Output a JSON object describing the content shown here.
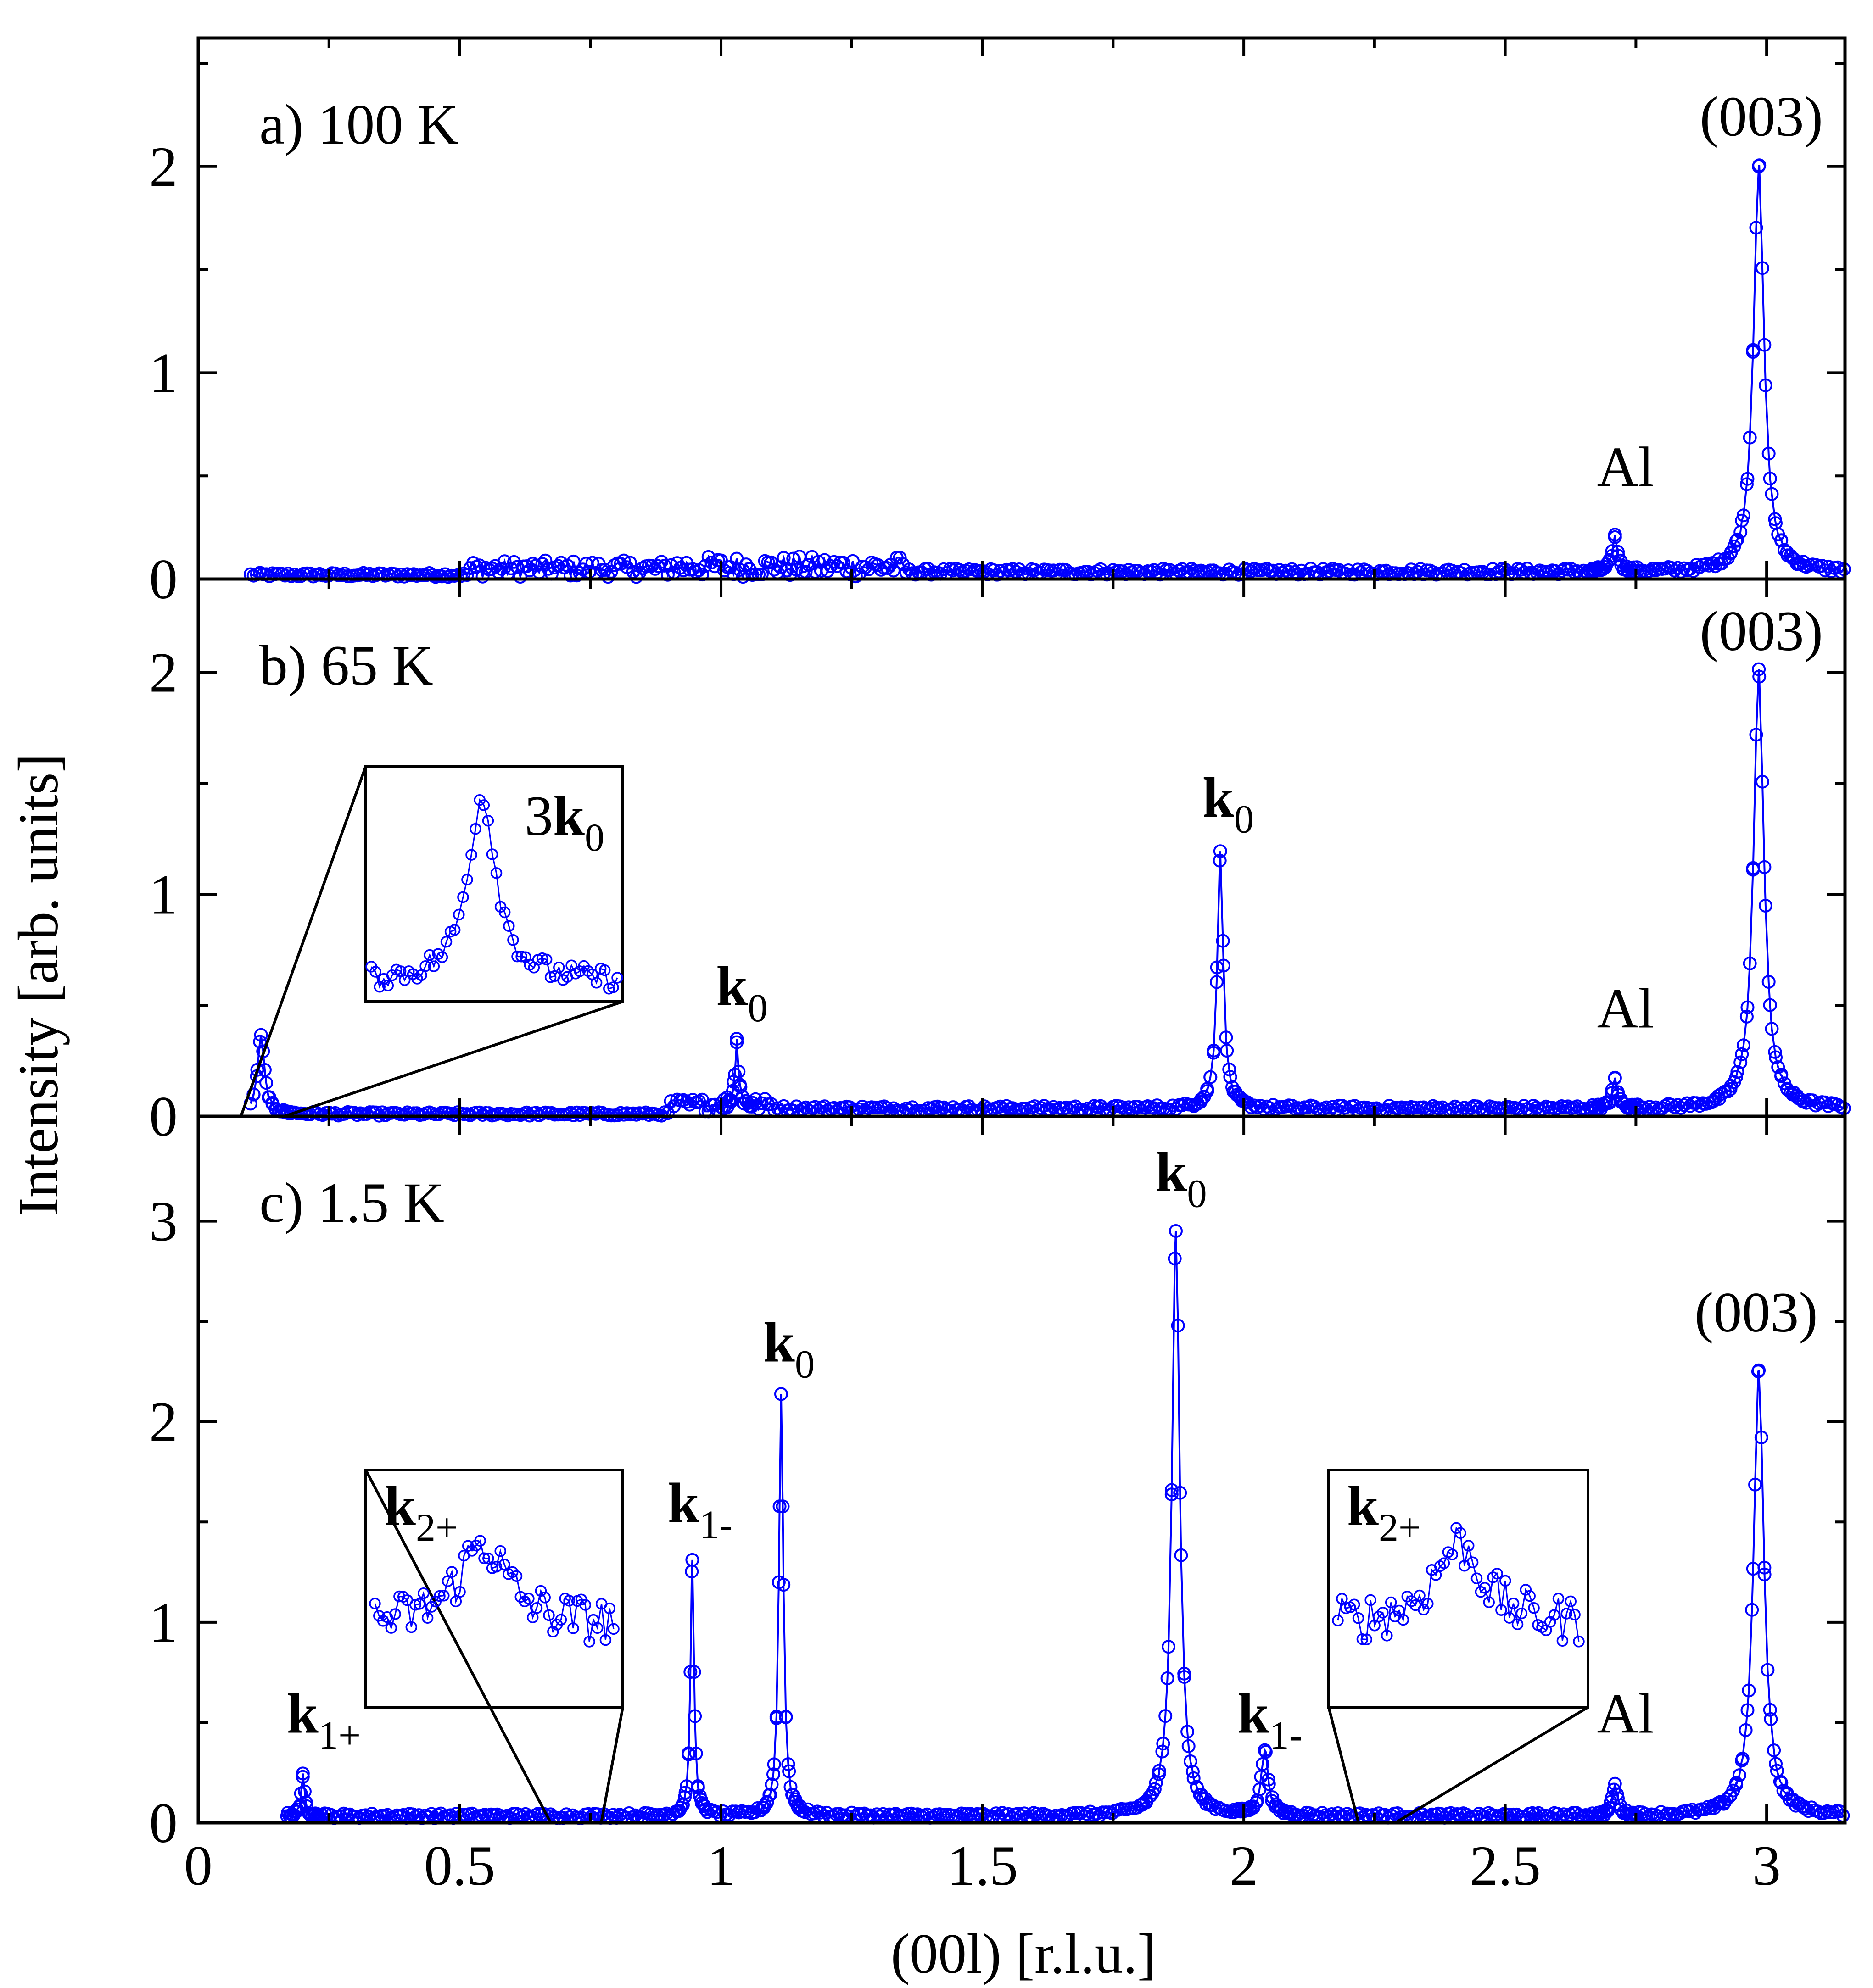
{
  "chart_data": {
    "type": "scatter",
    "xlabel": "(00l) [r.l.u.]",
    "ylabel": "Intensity [arb. units]",
    "xlim": [
      0,
      3.15
    ],
    "x_ticks": [
      "0",
      "0.5",
      "1",
      "1.5",
      "2",
      "2.5",
      "3"
    ],
    "marker": "open-circle",
    "color": "#0000ff",
    "panels": [
      {
        "id": "a",
        "title": "a) 100 K",
        "ylim": [
          0,
          2.6
        ],
        "y_ticks": [
          "0",
          "1",
          "2"
        ],
        "background": [
          {
            "x0": 0.1,
            "x1": 0.52,
            "level": 0.02,
            "noise": 0.01
          },
          {
            "x0": 0.52,
            "x1": 0.9,
            "level": 0.05,
            "noise": 0.04
          },
          {
            "x0": 0.9,
            "x1": 1.35,
            "level": 0.06,
            "noise": 0.05
          },
          {
            "x0": 1.35,
            "x1": 3.15,
            "level": 0.035,
            "noise": 0.015
          }
        ],
        "peaks": [
          {
            "center": 2.71,
            "height": 0.17,
            "width": 0.006,
            "label": "Al"
          },
          {
            "center": 2.985,
            "height": 1.97,
            "width": 0.012,
            "label": "(003)"
          }
        ],
        "annotations": [
          {
            "text": "Al",
            "x": 2.73,
            "y": 0.45
          },
          {
            "text": "(003)",
            "x": 2.99,
            "y": 2.15
          }
        ]
      },
      {
        "id": "b",
        "title": "b) 65 K",
        "ylim": [
          0,
          2.4
        ],
        "y_ticks": [
          "0",
          "1",
          "2"
        ],
        "background": [
          {
            "x0": 0.1,
            "x1": 0.9,
            "level": 0.01,
            "noise": 0.008
          },
          {
            "x0": 0.9,
            "x1": 1.1,
            "level": 0.05,
            "noise": 0.03
          },
          {
            "x0": 1.1,
            "x1": 3.15,
            "level": 0.035,
            "noise": 0.012
          }
        ],
        "peaks": [
          {
            "center": 0.12,
            "height": 0.35,
            "width": 0.008,
            "label": "3k0"
          },
          {
            "center": 1.03,
            "height": 0.3,
            "width": 0.004,
            "label": "k0"
          },
          {
            "center": 1.955,
            "height": 1.15,
            "width": 0.007,
            "label": "k0"
          },
          {
            "center": 2.71,
            "height": 0.13,
            "width": 0.006,
            "label": "Al"
          },
          {
            "center": 2.985,
            "height": 1.97,
            "width": 0.012,
            "label": "(003)"
          }
        ],
        "annotations": [
          {
            "text": "k",
            "sub": "0",
            "x": 1.04,
            "y": 0.5
          },
          {
            "text": "k",
            "sub": "0",
            "x": 1.97,
            "y": 1.35
          },
          {
            "text": "Al",
            "x": 2.73,
            "y": 0.4
          },
          {
            "text": "(003)",
            "x": 2.99,
            "y": 2.1
          }
        ],
        "insets": [
          {
            "label": "3k",
            "label_sub": "0"
          }
        ]
      },
      {
        "id": "c",
        "title": "c) 1.5 K",
        "ylim": [
          0,
          3.5
        ],
        "y_ticks": [
          "0",
          "1",
          "2",
          "3"
        ],
        "background": [
          {
            "x0": 0.17,
            "x1": 3.15,
            "level": 0.035,
            "noise": 0.012
          }
        ],
        "peaks": [
          {
            "center": 0.2,
            "height": 0.2,
            "width": 0.004,
            "label": "k1+"
          },
          {
            "center": 0.945,
            "height": 1.28,
            "width": 0.004,
            "label": "k1-"
          },
          {
            "center": 1.115,
            "height": 2.1,
            "width": 0.005,
            "label": "k0"
          },
          {
            "center": 1.87,
            "height": 2.92,
            "width": 0.009,
            "label": "k0"
          },
          {
            "center": 2.04,
            "height": 0.32,
            "width": 0.008,
            "label": "k1-"
          },
          {
            "center": 2.71,
            "height": 0.15,
            "width": 0.006,
            "label": "Al"
          },
          {
            "center": 2.985,
            "height": 2.22,
            "width": 0.012,
            "label": "(003)"
          }
        ],
        "annotations": [
          {
            "text": "k",
            "sub": "1+",
            "x": 0.24,
            "y": 0.45
          },
          {
            "text": "k",
            "sub": "1-",
            "x": 0.96,
            "y": 1.5
          },
          {
            "text": "k",
            "sub": "0",
            "x": 1.13,
            "y": 2.3
          },
          {
            "text": "k",
            "sub": "0",
            "x": 1.88,
            "y": 3.15
          },
          {
            "text": "k",
            "sub": "1-",
            "x": 2.05,
            "y": 0.45
          },
          {
            "text": "Al",
            "x": 2.73,
            "y": 0.45
          },
          {
            "text": "(003)",
            "x": 2.98,
            "y": 2.45
          }
        ],
        "insets": [
          {
            "label": "k",
            "label_sub": "2+"
          },
          {
            "label": "k",
            "label_sub": "2+"
          }
        ]
      }
    ]
  }
}
